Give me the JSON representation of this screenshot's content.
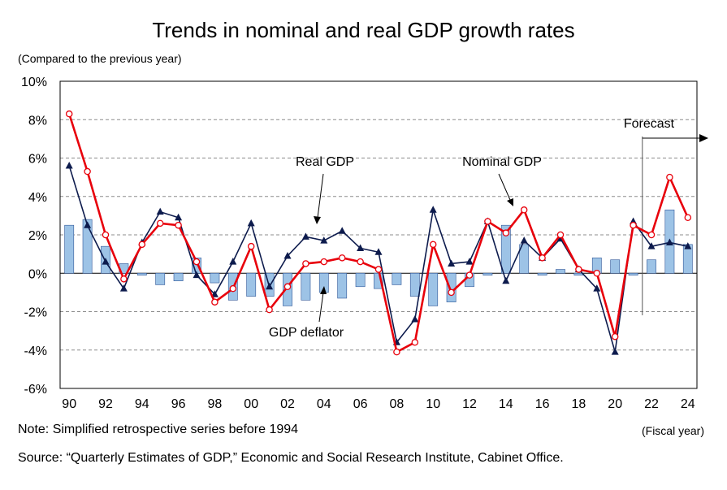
{
  "title": "Trends in nominal and real GDP growth rates",
  "unit_note": "(Compared to the previous year)",
  "note": "Note: Simplified retrospective series before 1994",
  "source": "Source: “Quarterly Estimates of GDP,” Economic and Social Research Institute, Cabinet Office.",
  "x_unit": "(Fiscal year)",
  "colors": {
    "nominal": "#e8000b",
    "real": "#0d1b4d",
    "deflator_fill": "#9dc3e6",
    "deflator_stroke": "#2e5597",
    "grid": "#8c8c8c"
  },
  "chart_data": {
    "type": "bar+line",
    "x": [
      1990,
      1991,
      1992,
      1993,
      1994,
      1995,
      1996,
      1997,
      1998,
      1999,
      2000,
      2001,
      2002,
      2003,
      2004,
      2005,
      2006,
      2007,
      2008,
      2009,
      2010,
      2011,
      2012,
      2013,
      2014,
      2015,
      2016,
      2017,
      2018,
      2019,
      2020,
      2021,
      2022,
      2023,
      2024
    ],
    "x_tick_labels": [
      "90",
      "92",
      "94",
      "96",
      "98",
      "00",
      "02",
      "04",
      "06",
      "08",
      "10",
      "12",
      "14",
      "16",
      "18",
      "20",
      "22",
      "24"
    ],
    "y_tick_labels": [
      "10%",
      "8%",
      "6%",
      "4%",
      "2%",
      "0%",
      "-2%",
      "-4%",
      "-6%"
    ],
    "ylim": [
      -6,
      10
    ],
    "grid": true,
    "forecast_start": 2022,
    "series": [
      {
        "name": "GDP deflator",
        "kind": "bar",
        "values": [
          2.5,
          2.8,
          1.4,
          0.5,
          -0.1,
          -0.6,
          -0.4,
          0.8,
          -0.5,
          -1.4,
          -1.2,
          -1.2,
          -1.7,
          -1.4,
          -1.0,
          -1.3,
          -0.7,
          -0.8,
          -0.6,
          -1.2,
          -1.7,
          -1.5,
          -0.7,
          -0.1,
          2.5,
          1.5,
          -0.1,
          0.2,
          -0.1,
          0.8,
          0.7,
          -0.1,
          0.7,
          3.3,
          1.5
        ]
      },
      {
        "name": "Nominal GDP",
        "kind": "line",
        "values": [
          8.3,
          5.3,
          2.0,
          -0.3,
          1.5,
          2.6,
          2.5,
          0.6,
          -1.5,
          -0.8,
          1.4,
          -1.9,
          -0.7,
          0.5,
          0.6,
          0.8,
          0.6,
          0.2,
          -4.1,
          -3.6,
          1.5,
          -1.0,
          -0.1,
          2.7,
          2.1,
          3.3,
          0.8,
          2.0,
          0.2,
          0.0,
          -3.3,
          2.5,
          2.0,
          5.0,
          2.9
        ]
      },
      {
        "name": "Real GDP",
        "kind": "line",
        "values": [
          5.6,
          2.5,
          0.6,
          -0.8,
          1.6,
          3.2,
          2.9,
          -0.1,
          -1.1,
          0.6,
          2.6,
          -0.7,
          0.9,
          1.9,
          1.7,
          2.2,
          1.3,
          1.1,
          -3.6,
          -2.4,
          3.3,
          0.5,
          0.6,
          2.7,
          -0.4,
          1.7,
          0.8,
          1.8,
          0.2,
          -0.8,
          -4.1,
          2.7,
          1.4,
          1.6,
          1.4
        ]
      }
    ],
    "annotations": {
      "real": "Real GDP",
      "nominal": "Nominal GDP",
      "deflator": "GDP deflator",
      "forecast": "Forecast"
    }
  }
}
